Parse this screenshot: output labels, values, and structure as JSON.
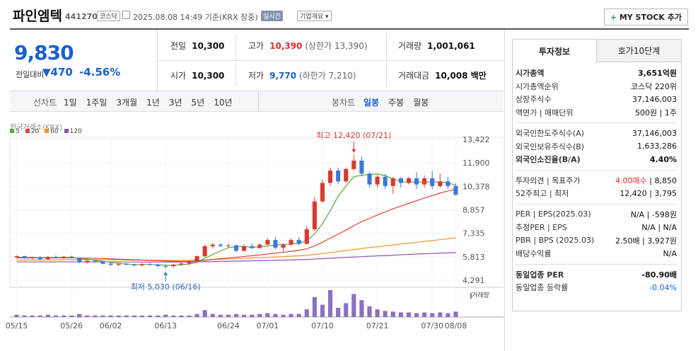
{
  "header": {
    "title": "파인엠텍",
    "code": "441270",
    "market_badge": "코스닥",
    "datetime": "2025.08.08 14:49",
    "basis": "기준(KRX 장중)",
    "realtime_badge": "실시간",
    "corp_info": "기업개요",
    "mystock": "MY STOCK 추가"
  },
  "quote": {
    "price": "9,830",
    "prev_label": "전일대비",
    "change": "470",
    "change_rate": "-4.56%",
    "prev_close_label": "전일",
    "prev_close": "10,300",
    "high_label": "고가",
    "high": "10,390",
    "upper_limit": "(상한가 13,390)",
    "volume_label": "거래량",
    "volume": "1,001,061",
    "open_label": "시가",
    "open": "10,300",
    "low_label": "저가",
    "low": "9,770",
    "lower_limit": "(하한가 7,210)",
    "amount_label": "거래대금",
    "amount": "10,008 백만"
  },
  "period_bar": {
    "label": "선차트",
    "items": [
      "1일",
      "1주일",
      "3개월",
      "1년",
      "3년",
      "5년",
      "10년"
    ],
    "candle_label": "봉차트",
    "candle_items": [
      "일봉",
      "주봉",
      "월봉"
    ],
    "candle_selected": 0
  },
  "chart_meta": {
    "source": "한국거래소(KRX)",
    "ma_legend": [
      {
        "name": "5",
        "color": "#4fae33"
      },
      {
        "name": "20",
        "color": "#e2412e"
      },
      {
        "name": "60",
        "color": "#f29227"
      },
      {
        "name": "120",
        "color": "#8a54b5"
      }
    ],
    "max_note": "최고 12,420 (07/21)",
    "min_note": "최저 5,030 (06/16)",
    "volume_label": "거래량",
    "up_color": "#d93a2e",
    "down_color": "#3c78d8"
  },
  "chart_data": {
    "type": "candlestick",
    "y_ticks": [
      "13,422",
      "11,900",
      "10,378",
      "8,857",
      "7,335",
      "5,813",
      "4,291"
    ],
    "ylim": [
      4291,
      13422
    ],
    "x_ticks": [
      "05/15",
      "05/26",
      "06/02",
      "06/13",
      "06/24",
      "07/01",
      "07/10",
      "07/21",
      "07/30",
      "08/08"
    ],
    "candles": [
      [
        5780,
        5900,
        5700,
        5850
      ],
      [
        5850,
        5880,
        5680,
        5720
      ],
      [
        5720,
        5820,
        5650,
        5780
      ],
      [
        5780,
        5850,
        5600,
        5660
      ],
      [
        5660,
        5850,
        5620,
        5800
      ],
      [
        5800,
        5900,
        5700,
        5760
      ],
      [
        5760,
        5850,
        5680,
        5820
      ],
      [
        5820,
        5880,
        5700,
        5740
      ],
      [
        5740,
        5780,
        5400,
        5450
      ],
      [
        5450,
        5600,
        5380,
        5550
      ],
      [
        5550,
        5620,
        5420,
        5470
      ],
      [
        5470,
        5560,
        5320,
        5360
      ],
      [
        5360,
        5450,
        5220,
        5290
      ],
      [
        5290,
        5400,
        5200,
        5350
      ],
      [
        5350,
        5420,
        5250,
        5300
      ],
      [
        5300,
        5380,
        5200,
        5260
      ],
      [
        5260,
        5400,
        5200,
        5340
      ],
      [
        5340,
        5420,
        5250,
        5300
      ],
      [
        5300,
        5360,
        5150,
        5210
      ],
      [
        5210,
        5300,
        5030,
        5200
      ],
      [
        5200,
        5350,
        5100,
        5300
      ],
      [
        5300,
        5420,
        5220,
        5380
      ],
      [
        5380,
        5600,
        5300,
        5520
      ],
      [
        5520,
        5900,
        5480,
        5850
      ],
      [
        5850,
        6600,
        5800,
        6500
      ],
      [
        6500,
        6700,
        6350,
        6600
      ],
      [
        6600,
        6700,
        6450,
        6520
      ],
      [
        6520,
        6650,
        6400,
        6550
      ],
      [
        6550,
        6620,
        6100,
        6200
      ],
      [
        6200,
        6600,
        6150,
        6500
      ],
      [
        6500,
        6700,
        6300,
        6380
      ],
      [
        6380,
        6700,
        6350,
        6600
      ],
      [
        6600,
        7000,
        6550,
        6900
      ],
      [
        6900,
        7100,
        6300,
        6400
      ],
      [
        6400,
        6700,
        6150,
        6600
      ],
      [
        6600,
        7000,
        6500,
        6900
      ],
      [
        6900,
        7100,
        6550,
        6650
      ],
      [
        6650,
        7800,
        6600,
        7600
      ],
      [
        7600,
        9700,
        7500,
        9400
      ],
      [
        9400,
        10800,
        9300,
        10600
      ],
      [
        10600,
        11600,
        10400,
        11400
      ],
      [
        11400,
        11600,
        10500,
        10700
      ],
      [
        10700,
        11600,
        10600,
        11500
      ],
      [
        11500,
        12420,
        11400,
        12050
      ],
      [
        12050,
        12300,
        11000,
        11200
      ],
      [
        11200,
        11300,
        10300,
        10500
      ],
      [
        10500,
        11100,
        10300,
        11000
      ],
      [
        11000,
        11200,
        10200,
        10400
      ],
      [
        10400,
        11000,
        9900,
        10900
      ],
      [
        10900,
        11000,
        10300,
        10600
      ],
      [
        10600,
        11000,
        10500,
        10900
      ],
      [
        10900,
        11300,
        10200,
        10500
      ],
      [
        10500,
        11100,
        10300,
        10900
      ],
      [
        10900,
        11400,
        10200,
        10400
      ],
      [
        10400,
        11200,
        10300,
        10700
      ],
      [
        10700,
        11000,
        10200,
        10400
      ],
      [
        10400,
        10600,
        9770,
        9830
      ]
    ],
    "volume": [
      3,
      2,
      2,
      2,
      3,
      2,
      2,
      2,
      4,
      2,
      2,
      2,
      2,
      2,
      2,
      2,
      2,
      2,
      2,
      3,
      2,
      2,
      2,
      4,
      9,
      4,
      3,
      3,
      4,
      3,
      3,
      4,
      5,
      4,
      3,
      4,
      4,
      10,
      26,
      16,
      35,
      12,
      18,
      30,
      22,
      14,
      10,
      8,
      7,
      6,
      6,
      5,
      6,
      5,
      6,
      5,
      7
    ],
    "ma5": [
      5790,
      5780,
      5770,
      5760,
      5760,
      5770,
      5770,
      5780,
      5700,
      5650,
      5600,
      5520,
      5440,
      5390,
      5340,
      5310,
      5310,
      5310,
      5290,
      5270,
      5270,
      5300,
      5340,
      5450,
      5720,
      5960,
      6190,
      6400,
      6470,
      6470,
      6430,
      6450,
      6500,
      6580,
      6600,
      6640,
      6700,
      6850,
      7300,
      7960,
      8800,
      9740,
      10400,
      11000,
      11100,
      11150,
      11180,
      11070,
      10860,
      10700,
      10650,
      10660,
      10680,
      10660,
      10660,
      10590,
      10460
    ],
    "ma20": [
      5740,
      5740,
      5740,
      5740,
      5740,
      5740,
      5740,
      5740,
      5730,
      5720,
      5710,
      5700,
      5680,
      5660,
      5640,
      5620,
      5600,
      5580,
      5560,
      5540,
      5520,
      5510,
      5510,
      5530,
      5580,
      5640,
      5690,
      5740,
      5780,
      5830,
      5880,
      5930,
      5990,
      6050,
      6100,
      6160,
      6230,
      6330,
      6520,
      6750,
      7020,
      7280,
      7540,
      7830,
      8090,
      8300,
      8520,
      8720,
      8920,
      9100,
      9280,
      9450,
      9620,
      9780,
      9940,
      10080,
      10180
    ],
    "ma60": [
      5600,
      5605,
      5610,
      5610,
      5615,
      5615,
      5620,
      5620,
      5620,
      5620,
      5620,
      5620,
      5615,
      5610,
      5605,
      5600,
      5595,
      5590,
      5585,
      5580,
      5575,
      5575,
      5580,
      5590,
      5610,
      5630,
      5650,
      5670,
      5690,
      5710,
      5730,
      5750,
      5770,
      5800,
      5820,
      5850,
      5880,
      5910,
      5960,
      6020,
      6090,
      6150,
      6210,
      6280,
      6350,
      6410,
      6460,
      6520,
      6580,
      6640,
      6690,
      6750,
      6800,
      6860,
      6920,
      6980,
      7050
    ],
    "ma120": [
      5480,
      5480,
      5480,
      5480,
      5480,
      5480,
      5480,
      5480,
      5480,
      5480,
      5480,
      5480,
      5480,
      5480,
      5475,
      5475,
      5470,
      5470,
      5470,
      5470,
      5470,
      5470,
      5475,
      5480,
      5490,
      5500,
      5510,
      5520,
      5530,
      5540,
      5550,
      5560,
      5570,
      5580,
      5590,
      5605,
      5620,
      5640,
      5665,
      5690,
      5720,
      5745,
      5770,
      5795,
      5820,
      5845,
      5870,
      5890,
      5915,
      5940,
      5965,
      5985,
      6005,
      6025,
      6045,
      6065,
      6085
    ]
  },
  "tabs": [
    "투자정보",
    "호가10단계"
  ],
  "invest": {
    "section1": [
      {
        "k": "시가총액",
        "v": "3,651억원",
        "bold": true
      },
      {
        "k": "시가총액순위",
        "v": "코스닥 220위"
      },
      {
        "k": "상장주식수",
        "v": "37,146,003"
      },
      {
        "k": "액면가 | 매매단위",
        "v": "500원 | 1주"
      }
    ],
    "section2": [
      {
        "k": "외국인한도주식수(A)",
        "v": "37,146,003"
      },
      {
        "k": "외국인보유주식수(B)",
        "v": "1,633,286"
      },
      {
        "k": "외국인소진율(B/A)",
        "v": "4.40%",
        "bold": true
      }
    ],
    "section3": [
      {
        "k": "투자의견 | 목표주가",
        "v1": "4.00매수",
        "v2": "8,850"
      },
      {
        "k": "52주최고 | 최저",
        "v1": "12,420",
        "v2": "3,795"
      }
    ],
    "section4": [
      {
        "k": "PER | EPS(2025.03)",
        "v": "N/A | -598원"
      },
      {
        "k": "추정PER | EPS",
        "v": "N/A | N/A"
      },
      {
        "k": "PBR | BPS (2025.03)",
        "v": "2.50배 | 3,927원"
      },
      {
        "k": "배당수익률",
        "v": "N/A"
      }
    ],
    "section5": [
      {
        "k": "동일업종 PER",
        "v": "-80.90배",
        "bold": true
      },
      {
        "k": "동일업종 등락률",
        "v": "-0.04%",
        "blue": true
      }
    ]
  }
}
